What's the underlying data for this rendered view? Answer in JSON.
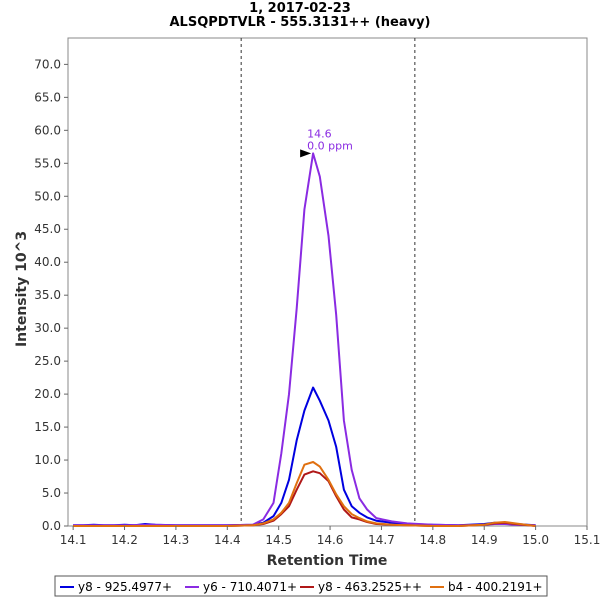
{
  "chart_data": {
    "type": "line",
    "title": "1, 2017-02-23",
    "subtitle": "ALSQPDTVLR - 555.3131++ (heavy)",
    "xlabel": "Retention Time",
    "ylabel": "Intensity 10^3",
    "xlim": [
      14.09,
      15.1
    ],
    "ylim": [
      0,
      74
    ],
    "xticks": [
      "14.1",
      "14.2",
      "14.3",
      "14.4",
      "14.5",
      "14.6",
      "14.7",
      "14.8",
      "14.9",
      "15.0",
      "15.1"
    ],
    "yticks": [
      "0.0",
      "5.0",
      "10.0",
      "15.0",
      "20.0",
      "25.0",
      "30.0",
      "35.0",
      "40.0",
      "45.0",
      "50.0",
      "55.0",
      "60.0",
      "65.0",
      "70.0"
    ],
    "grid": false,
    "legend_position": "bottom",
    "boundaries": [
      14.427,
      14.765
    ],
    "peak_annotation": {
      "x": 14.567,
      "y": 56.5,
      "rt_label": "14.6",
      "ppm_label": "0.0 ppm",
      "color": "#8a2be2"
    },
    "series": [
      {
        "name": "y8 - 925.4977+",
        "color": "#0000e0",
        "x": [
          14.1,
          14.12,
          14.14,
          14.16,
          14.18,
          14.2,
          14.22,
          14.24,
          14.26,
          14.3,
          14.35,
          14.4,
          14.45,
          14.47,
          14.49,
          14.505,
          14.52,
          14.535,
          14.55,
          14.567,
          14.58,
          14.597,
          14.612,
          14.627,
          14.642,
          14.657,
          14.672,
          14.69,
          14.72,
          14.75,
          14.8,
          14.85,
          14.9,
          14.92,
          14.94,
          14.96,
          15.0
        ],
        "values": [
          0.1,
          0.1,
          0.2,
          0.1,
          0.1,
          0.2,
          0.1,
          0.3,
          0.2,
          0.1,
          0.1,
          0.1,
          0.2,
          0.5,
          1.5,
          3.5,
          7.0,
          13.0,
          17.5,
          21.0,
          19.0,
          16.0,
          12.0,
          5.5,
          3.0,
          2.0,
          1.3,
          0.8,
          0.5,
          0.3,
          0.2,
          0.1,
          0.3,
          0.5,
          0.4,
          0.3,
          0.1
        ]
      },
      {
        "name": "y6 - 710.4071+",
        "color": "#8a2be2",
        "x": [
          14.1,
          14.15,
          14.2,
          14.25,
          14.3,
          14.35,
          14.4,
          14.45,
          14.47,
          14.49,
          14.505,
          14.52,
          14.535,
          14.55,
          14.567,
          14.58,
          14.597,
          14.612,
          14.627,
          14.642,
          14.657,
          14.672,
          14.69,
          14.72,
          14.75,
          14.8,
          14.85,
          14.9,
          14.92,
          14.94,
          14.96,
          15.0
        ],
        "values": [
          0.1,
          0.1,
          0.1,
          0.2,
          0.1,
          0.1,
          0.1,
          0.2,
          1.0,
          3.5,
          11.0,
          20.0,
          33.0,
          48.0,
          56.5,
          53.0,
          44.0,
          32.0,
          16.0,
          8.5,
          4.2,
          2.5,
          1.2,
          0.7,
          0.4,
          0.2,
          0.1,
          0.2,
          0.3,
          0.3,
          0.2,
          0.1
        ]
      },
      {
        "name": "y8 - 463.2525++",
        "color": "#b01818",
        "x": [
          14.1,
          14.2,
          14.3,
          14.4,
          14.45,
          14.47,
          14.49,
          14.505,
          14.52,
          14.535,
          14.55,
          14.567,
          14.58,
          14.597,
          14.612,
          14.627,
          14.642,
          14.657,
          14.672,
          14.69,
          14.72,
          14.75,
          14.8,
          14.85,
          14.9,
          14.92,
          14.94,
          14.96,
          15.0
        ],
        "values": [
          0.0,
          0.0,
          0.0,
          0.0,
          0.1,
          0.3,
          0.8,
          1.8,
          3.0,
          5.5,
          7.8,
          8.3,
          8.0,
          6.8,
          4.5,
          2.5,
          1.3,
          1.0,
          0.6,
          0.3,
          0.2,
          0.1,
          0.0,
          0.0,
          0.2,
          0.4,
          0.5,
          0.3,
          0.0
        ]
      },
      {
        "name": "b4 - 400.2191+",
        "color": "#e07010",
        "x": [
          14.1,
          14.2,
          14.3,
          14.4,
          14.45,
          14.47,
          14.49,
          14.505,
          14.52,
          14.535,
          14.55,
          14.567,
          14.58,
          14.597,
          14.612,
          14.627,
          14.642,
          14.657,
          14.672,
          14.69,
          14.72,
          14.75,
          14.8,
          14.85,
          14.9,
          14.92,
          14.94,
          14.96,
          15.0
        ],
        "values": [
          0.0,
          0.0,
          0.0,
          0.0,
          0.1,
          0.4,
          1.0,
          2.0,
          3.5,
          6.5,
          9.3,
          9.7,
          9.0,
          7.0,
          4.8,
          3.0,
          1.8,
          1.2,
          0.7,
          0.4,
          0.2,
          0.1,
          0.0,
          0.0,
          0.2,
          0.5,
          0.6,
          0.4,
          0.0
        ]
      }
    ]
  }
}
